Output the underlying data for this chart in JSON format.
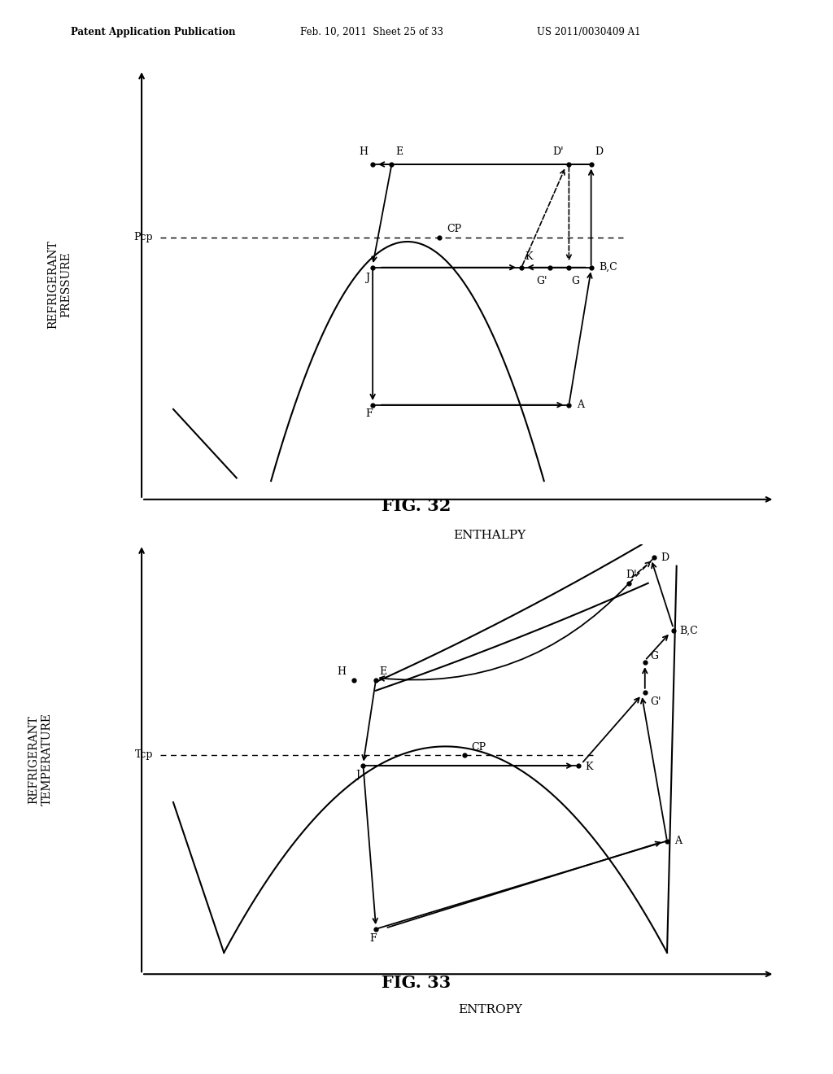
{
  "header_left": "Patent Application Publication",
  "header_mid": "Feb. 10, 2011  Sheet 25 of 33",
  "header_right": "US 2011/0030409 A1",
  "fig32_title": "FIG. 32",
  "fig33_title": "FIG. 33",
  "fig32_ylabel": "REFRIGERANT\nPRESSURE",
  "fig32_xlabel": "ENTHALPY",
  "fig33_ylabel": "REFRIGERANT\nTEMPERATURE",
  "fig33_xlabel": "ENTROPY",
  "bg_color": "#ffffff",
  "line_color": "#000000"
}
